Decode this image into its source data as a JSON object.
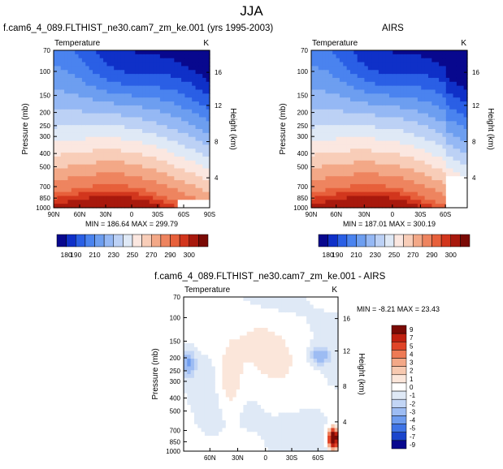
{
  "main_title": "JJA",
  "chart_data": [
    {
      "type": "heatmap",
      "title": "f.cam6_4_089.FLTHIST_ne30.cam7_zm_ke.001 (yrs 1995-2003)",
      "subtitle_left": "Temperature",
      "subtitle_right": "K",
      "ylabel": "Pressure (mb)",
      "ylabel_right": "Height (km)",
      "x_ticks": [
        "90N",
        "60N",
        "30N",
        "0",
        "30S",
        "60S",
        "90S"
      ],
      "y_ticks": [
        "70",
        "100",
        "150",
        "200",
        "250",
        "300",
        "400",
        "500",
        "700",
        "850",
        "1000"
      ],
      "height_ticks": [
        "16",
        "12",
        "8",
        "4"
      ],
      "stats": "MIN = 186.64   MAX = 299.79",
      "colorbar_labels": [
        "180",
        "190",
        "210",
        "230",
        "250",
        "270",
        "290",
        "300"
      ],
      "min": 186.64,
      "max": 299.79
    },
    {
      "type": "heatmap",
      "title": "AIRS",
      "subtitle_left": "Temperature",
      "subtitle_right": "K",
      "ylabel": "Pressure (mb)",
      "ylabel_right": "Height (km)",
      "x_ticks": [
        "90N",
        "60N",
        "30N",
        "0",
        "30S",
        "60S"
      ],
      "y_ticks": [
        "70",
        "100",
        "150",
        "200",
        "250",
        "300",
        "400",
        "500",
        "700",
        "850",
        "1000"
      ],
      "height_ticks": [
        "16",
        "12",
        "8",
        "4"
      ],
      "stats": "MIN = 187.01   MAX = 300.19",
      "colorbar_labels": [
        "180",
        "190",
        "210",
        "230",
        "250",
        "270",
        "290",
        "300"
      ],
      "min": 187.01,
      "max": 300.19
    },
    {
      "type": "heatmap",
      "title": "f.cam6_4_089.FLTHIST_ne30.cam7_zm_ke.001 - AIRS",
      "subtitle_left": "Temperature",
      "subtitle_right": "K",
      "ylabel": "Pressure (mb)",
      "ylabel_right": "Height (km)",
      "x_ticks": [
        "60N",
        "30N",
        "0",
        "30S",
        "60S"
      ],
      "y_ticks": [
        "70",
        "100",
        "150",
        "200",
        "250",
        "300",
        "400",
        "500",
        "700",
        "850",
        "1000"
      ],
      "height_ticks": [
        "16",
        "12",
        "8",
        "4"
      ],
      "stats": "MIN =  -8.21   MAX =  23.43",
      "colorbar_labels": [
        "9",
        "7",
        "5",
        "4",
        "3",
        "2",
        "1",
        "0",
        "-1",
        "-2",
        "-3",
        "-4",
        "-5",
        "-7",
        "-9"
      ],
      "min": -8.21,
      "max": 23.43
    }
  ],
  "colors": {
    "temp_scale": [
      "#08088e",
      "#0f30c8",
      "#2a5fe5",
      "#4a83ef",
      "#6d9ef0",
      "#95b8f4",
      "#bcd1f5",
      "#dfe9f6",
      "#fbe7e0",
      "#f8cdb8",
      "#f3a887",
      "#ee845f",
      "#e7603b",
      "#d2361d",
      "#a8190d",
      "#7a0a05"
    ],
    "diff_scale": [
      "#7a0a05",
      "#c02010",
      "#e04428",
      "#ee7a55",
      "#f3a887",
      "#f7c9b0",
      "#fbe6da",
      "#ffffff",
      "#dfe9f6",
      "#c2d5f5",
      "#9dbcf3",
      "#6e9cef",
      "#3f74e6",
      "#1a45cc",
      "#08088e"
    ]
  }
}
